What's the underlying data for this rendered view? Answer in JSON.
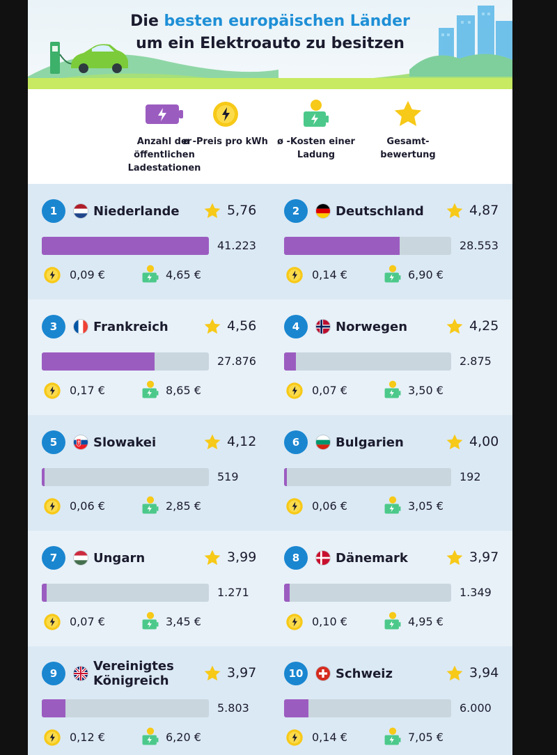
{
  "title": {
    "line1_prefix": "Die",
    "line1_highlight": "besten europäischen Länder",
    "line2": "um ein Elektroauto zu besitzen"
  },
  "legend": [
    {
      "icon": "battery-icon",
      "label": "Anzahl der öffentlichen Ladestationen"
    },
    {
      "icon": "coin-icon",
      "label": "ø -Preis pro kWh"
    },
    {
      "icon": "battery-coin-icon",
      "label": "ø -Kosten einer Ladung"
    },
    {
      "icon": "star-icon",
      "label": "Gesamt- bewertung"
    }
  ],
  "colors": {
    "accent_blue": "#1a86d0",
    "bar_purple": "#9b5cc0",
    "bar_track": "#c9d6de",
    "star_yellow": "#f7c918",
    "battery_green": "#4cc98a"
  },
  "max_stations": 41223,
  "countries": [
    {
      "rank": "1",
      "name": "Niederlande",
      "flag": "nl",
      "score": "5,76",
      "stations": 41223,
      "stations_label": "41.223",
      "price": "0,09 €",
      "cost": "4,65 €"
    },
    {
      "rank": "2",
      "name": "Deutschland",
      "flag": "de",
      "score": "4,87",
      "stations": 28553,
      "stations_label": "28.553",
      "price": "0,14 €",
      "cost": "6,90 €"
    },
    {
      "rank": "3",
      "name": "Frankreich",
      "flag": "fr",
      "score": "4,56",
      "stations": 27876,
      "stations_label": "27.876",
      "price": "0,17 €",
      "cost": "8,65 €"
    },
    {
      "rank": "4",
      "name": "Norwegen",
      "flag": "no",
      "score": "4,25",
      "stations": 2875,
      "stations_label": "2.875",
      "price": "0,07 €",
      "cost": "3,50 €"
    },
    {
      "rank": "5",
      "name": "Slowakei",
      "flag": "sk",
      "score": "4,12",
      "stations": 519,
      "stations_label": "519",
      "price": "0,06 €",
      "cost": "2,85 €"
    },
    {
      "rank": "6",
      "name": "Bulgarien",
      "flag": "bg",
      "score": "4,00",
      "stations": 192,
      "stations_label": "192",
      "price": "0,06 €",
      "cost": "3,05 €"
    },
    {
      "rank": "7",
      "name": "Ungarn",
      "flag": "hu",
      "score": "3,99",
      "stations": 1271,
      "stations_label": "1.271",
      "price": "0,07 €",
      "cost": "3,45 €"
    },
    {
      "rank": "8",
      "name": "Dänemark",
      "flag": "dk",
      "score": "3,97",
      "stations": 1349,
      "stations_label": "1.349",
      "price": "0,10 €",
      "cost": "4,95 €"
    },
    {
      "rank": "9",
      "name": "Vereinigtes Königreich",
      "flag": "gb",
      "score": "3,97",
      "stations": 5803,
      "stations_label": "5.803",
      "price": "0,12 €",
      "cost": "6,20 €"
    },
    {
      "rank": "10",
      "name": "Schweiz",
      "flag": "ch",
      "score": "3,94",
      "stations": 6000,
      "stations_label": "6.000",
      "price": "0,14 €",
      "cost": "7,05 €"
    }
  ]
}
